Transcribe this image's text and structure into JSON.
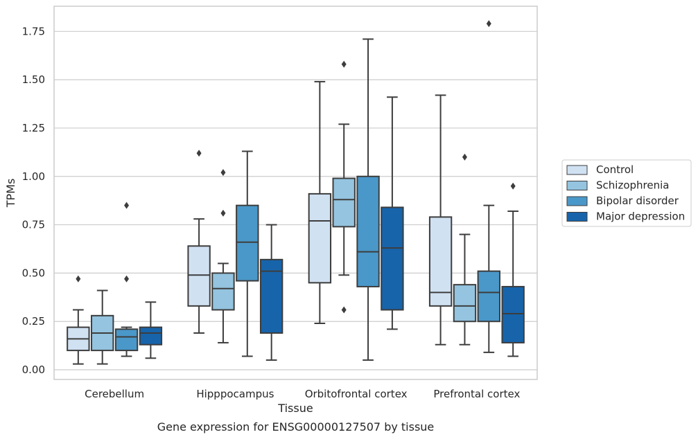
{
  "chart_data": {
    "type": "boxplot",
    "title": "",
    "caption": "Gene expression for ENSG00000127507 by tissue",
    "xlabel": "Tissue",
    "ylabel": "TPMs",
    "ylim": [
      -0.05,
      1.88
    ],
    "yticks": [
      "0.00",
      "0.25",
      "0.50",
      "0.75",
      "1.00",
      "1.25",
      "1.50",
      "1.75"
    ],
    "grid": "horizontal",
    "legend_position": "right",
    "categories": [
      "Cerebellum",
      "Hipppocampus",
      "Orbitofrontal cortex",
      "Prefrontal cortex"
    ],
    "series": [
      {
        "name": "Control",
        "color": "#d0e1f2",
        "boxes": [
          {
            "whislo": 0.03,
            "q1": 0.1,
            "med": 0.16,
            "q3": 0.22,
            "whishi": 0.31,
            "fliers": [
              0.47
            ]
          },
          {
            "whislo": 0.19,
            "q1": 0.33,
            "med": 0.49,
            "q3": 0.64,
            "whishi": 0.78,
            "fliers": [
              1.12
            ]
          },
          {
            "whislo": 0.24,
            "q1": 0.45,
            "med": 0.77,
            "q3": 0.91,
            "whishi": 1.49,
            "fliers": []
          },
          {
            "whislo": 0.13,
            "q1": 0.33,
            "med": 0.4,
            "q3": 0.79,
            "whishi": 1.42,
            "fliers": []
          }
        ]
      },
      {
        "name": "Schizophrenia",
        "color": "#94c4df",
        "boxes": [
          {
            "whislo": 0.03,
            "q1": 0.1,
            "med": 0.19,
            "q3": 0.28,
            "whishi": 0.41,
            "fliers": []
          },
          {
            "whislo": 0.14,
            "q1": 0.31,
            "med": 0.42,
            "q3": 0.5,
            "whishi": 0.55,
            "fliers": [
              0.81,
              1.02
            ]
          },
          {
            "whislo": 0.49,
            "q1": 0.74,
            "med": 0.88,
            "q3": 0.99,
            "whishi": 1.27,
            "fliers": [
              0.31,
              1.58
            ]
          },
          {
            "whislo": 0.13,
            "q1": 0.25,
            "med": 0.33,
            "q3": 0.44,
            "whishi": 0.7,
            "fliers": [
              1.1
            ]
          }
        ]
      },
      {
        "name": "Bipolar disorder",
        "color": "#4a98c9",
        "boxes": [
          {
            "whislo": 0.07,
            "q1": 0.1,
            "med": 0.17,
            "q3": 0.21,
            "whishi": 0.22,
            "fliers": [
              0.47,
              0.85
            ]
          },
          {
            "whislo": 0.07,
            "q1": 0.46,
            "med": 0.66,
            "q3": 0.85,
            "whishi": 1.13,
            "fliers": []
          },
          {
            "whislo": 0.05,
            "q1": 0.43,
            "med": 0.61,
            "q3": 1.0,
            "whishi": 1.71,
            "fliers": []
          },
          {
            "whislo": 0.09,
            "q1": 0.25,
            "med": 0.4,
            "q3": 0.51,
            "whishi": 0.85,
            "fliers": [
              1.79
            ]
          }
        ]
      },
      {
        "name": "Major depression",
        "color": "#1764ab",
        "boxes": [
          {
            "whislo": 0.06,
            "q1": 0.13,
            "med": 0.19,
            "q3": 0.22,
            "whishi": 0.35,
            "fliers": []
          },
          {
            "whislo": 0.05,
            "q1": 0.19,
            "med": 0.51,
            "q3": 0.57,
            "whishi": 0.75,
            "fliers": []
          },
          {
            "whislo": 0.21,
            "q1": 0.31,
            "med": 0.63,
            "q3": 0.84,
            "whishi": 1.41,
            "fliers": []
          },
          {
            "whislo": 0.07,
            "q1": 0.14,
            "med": 0.29,
            "q3": 0.43,
            "whishi": 0.82,
            "fliers": [
              0.95
            ]
          }
        ]
      }
    ]
  }
}
